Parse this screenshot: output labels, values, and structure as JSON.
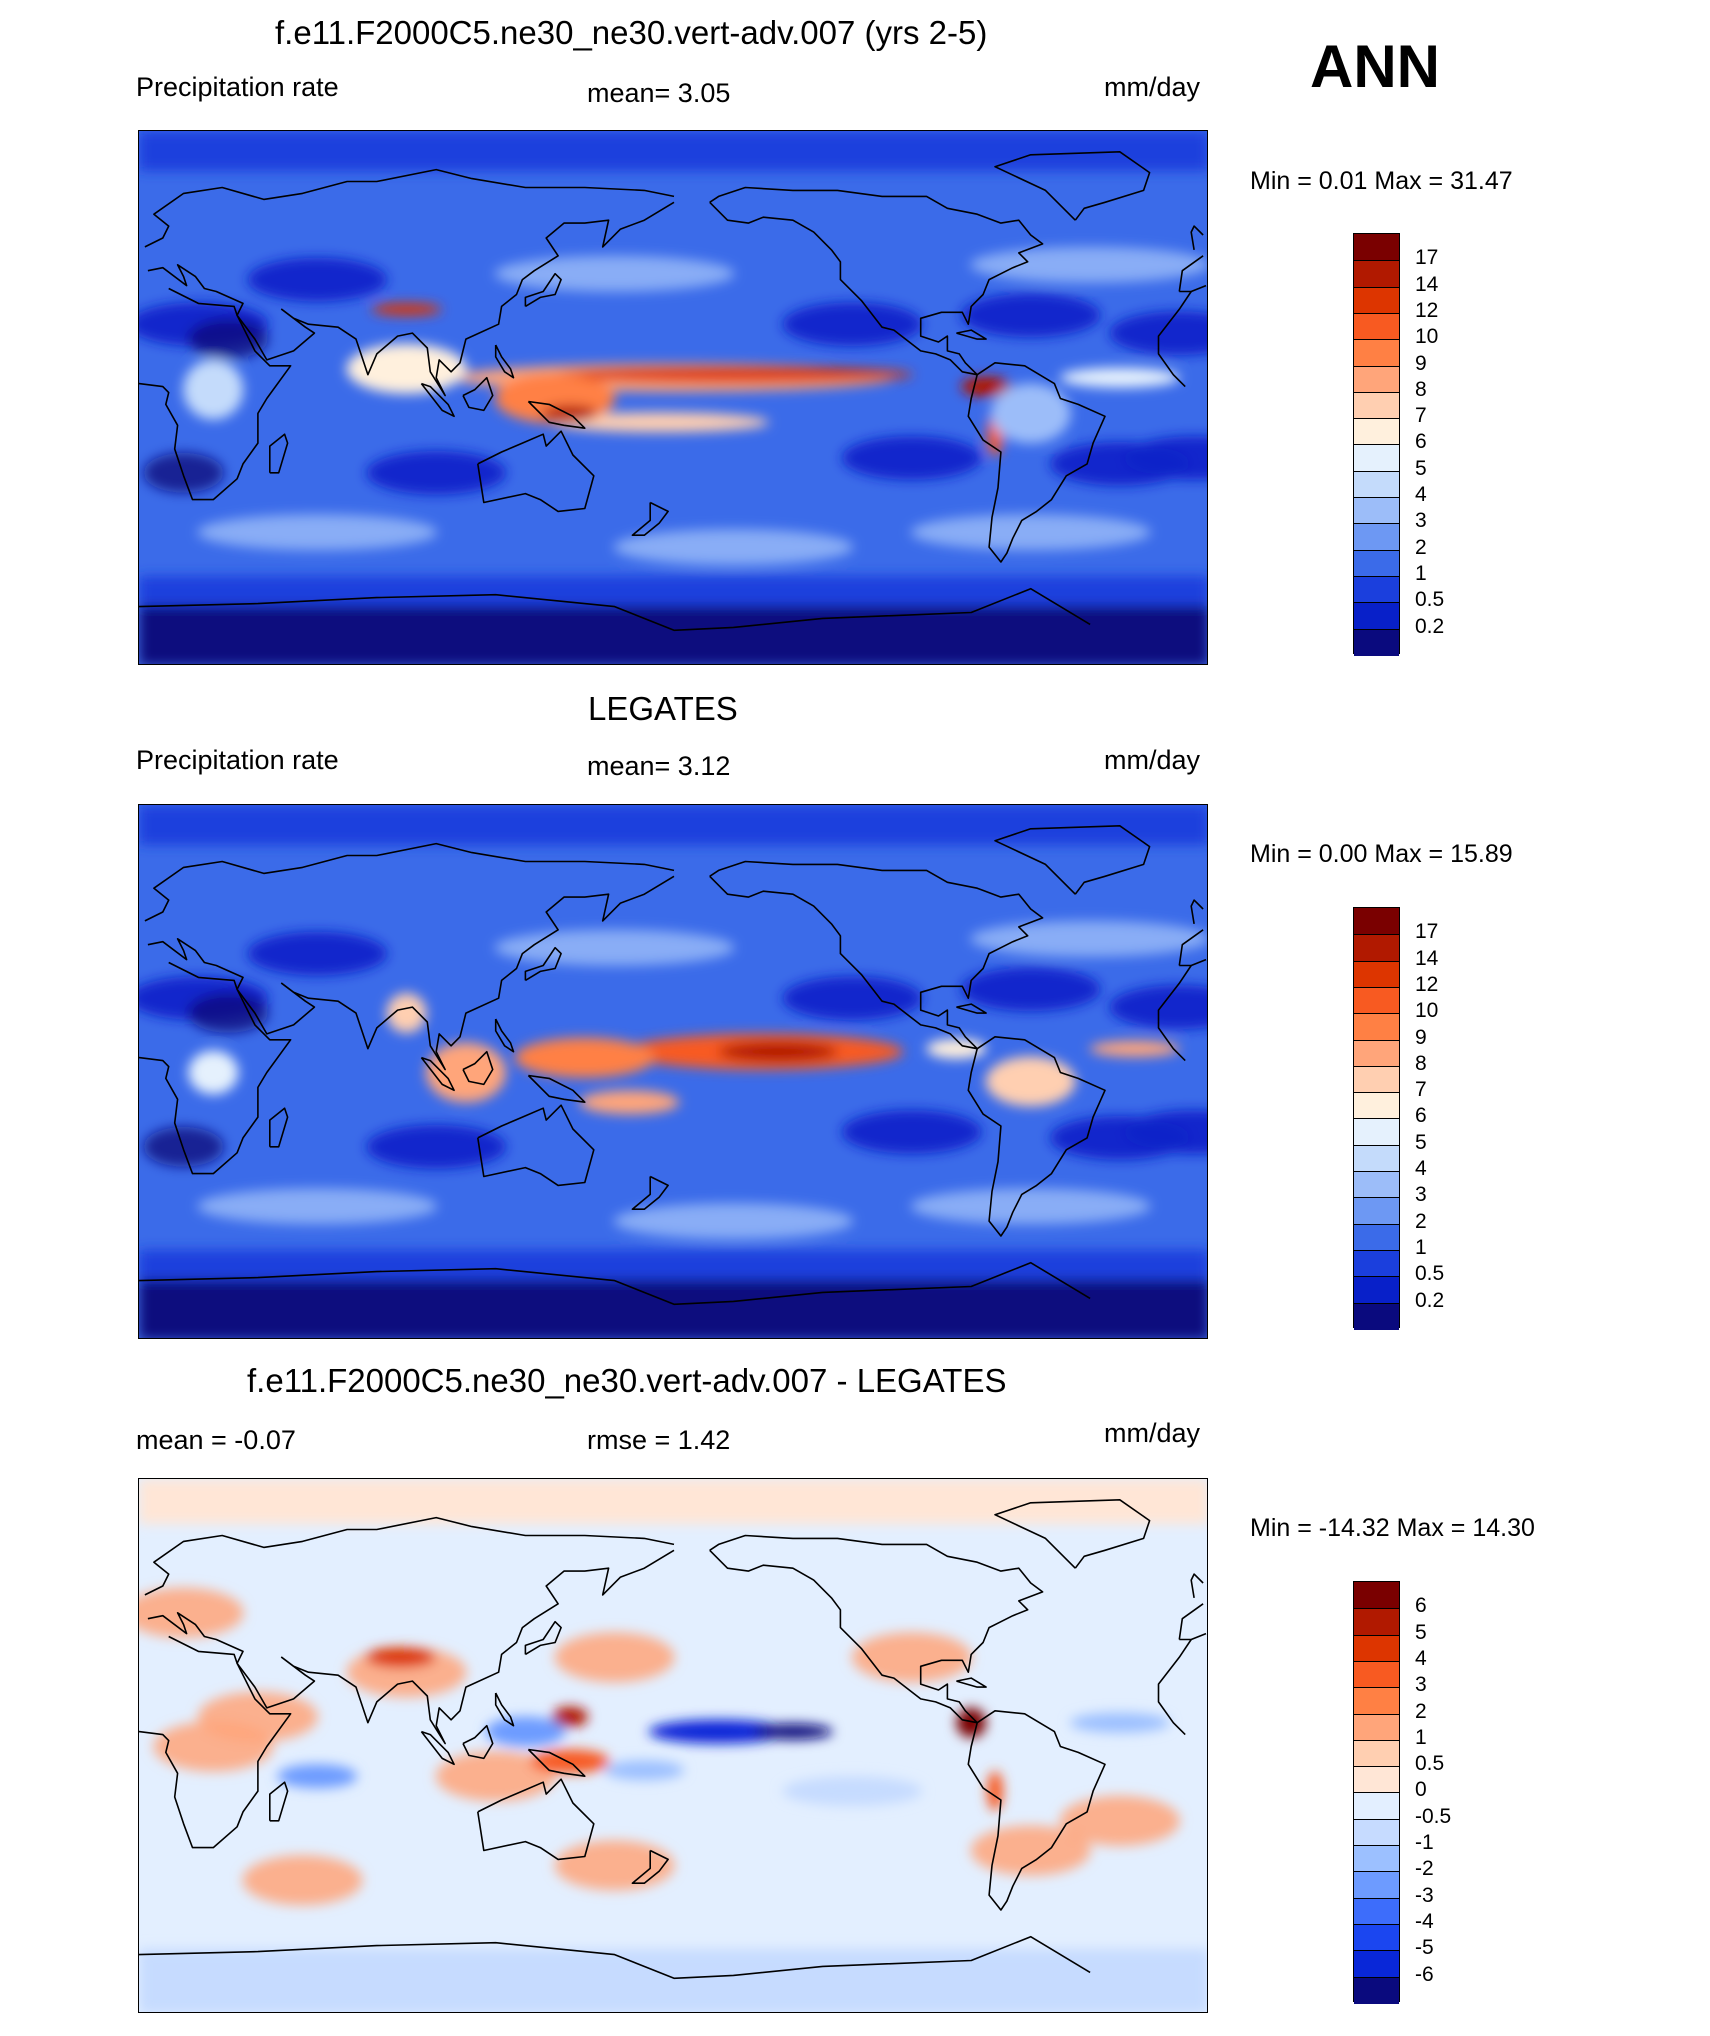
{
  "season": "ANN",
  "panels": [
    {
      "title": "f.e11.F2000C5.ne30_ne30.vert-adv.007 (yrs 2-5)",
      "left_label": "Precipitation rate",
      "center_label": "mean=   3.05",
      "units": "mm/day",
      "minmax": "Min =   0.01 Max =  31.47",
      "colorbar": {
        "labels": [
          "17",
          "14",
          "12",
          "10",
          "9",
          "8",
          "7",
          "6",
          "5",
          "4",
          "3",
          "2",
          "1",
          "0.5",
          "0.2"
        ],
        "colors": [
          "#7a0000",
          "#b11900",
          "#dd3500",
          "#f85a21",
          "#ff8044",
          "#ffa57a",
          "#ffcfb1",
          "#fff0dd",
          "#e5f1fd",
          "#c4dbfb",
          "#9cbdf9",
          "#6d98f3",
          "#3b6be9",
          "#1b3fdd",
          "#0820c9",
          "#0a0a7e"
        ]
      },
      "map": {
        "type": "precip",
        "variant": "model"
      }
    },
    {
      "title": "LEGATES",
      "left_label": "Precipitation rate",
      "center_label": "mean=   3.12",
      "units": "mm/day",
      "minmax": "Min =   0.00 Max =  15.89",
      "colorbar": {
        "labels": [
          "17",
          "14",
          "12",
          "10",
          "9",
          "8",
          "7",
          "6",
          "5",
          "4",
          "3",
          "2",
          "1",
          "0.5",
          "0.2"
        ],
        "colors": [
          "#7a0000",
          "#b11900",
          "#dd3500",
          "#f85a21",
          "#ff8044",
          "#ffa57a",
          "#ffcfb1",
          "#fff0dd",
          "#e5f1fd",
          "#c4dbfb",
          "#9cbdf9",
          "#6d98f3",
          "#3b6be9",
          "#1b3fdd",
          "#0820c9",
          "#0a0a7e"
        ]
      },
      "map": {
        "type": "precip",
        "variant": "obs"
      }
    },
    {
      "title": "f.e11.F2000C5.ne30_ne30.vert-adv.007 - LEGATES",
      "left_label": "mean =  -0.07",
      "center_label": "rmse =    1.42",
      "units": "mm/day",
      "minmax": "Min = -14.32 Max =  14.30",
      "colorbar": {
        "labels": [
          "6",
          "5",
          "4",
          "3",
          "2",
          "1",
          "0.5",
          "0",
          "-0.5",
          "-1",
          "-2",
          "-3",
          "-4",
          "-5",
          "-6"
        ],
        "colors": [
          "#7a0000",
          "#b11900",
          "#dd3500",
          "#f85a21",
          "#ff8044",
          "#ffa57a",
          "#ffcfb1",
          "#ffe6d6",
          "#e3efff",
          "#c6dbff",
          "#9cc0ff",
          "#6d9bff",
          "#3d6dfb",
          "#1b46f0",
          "#0927d8",
          "#0a0a7e"
        ]
      },
      "map": {
        "type": "diff",
        "variant": "diff"
      }
    }
  ]
}
